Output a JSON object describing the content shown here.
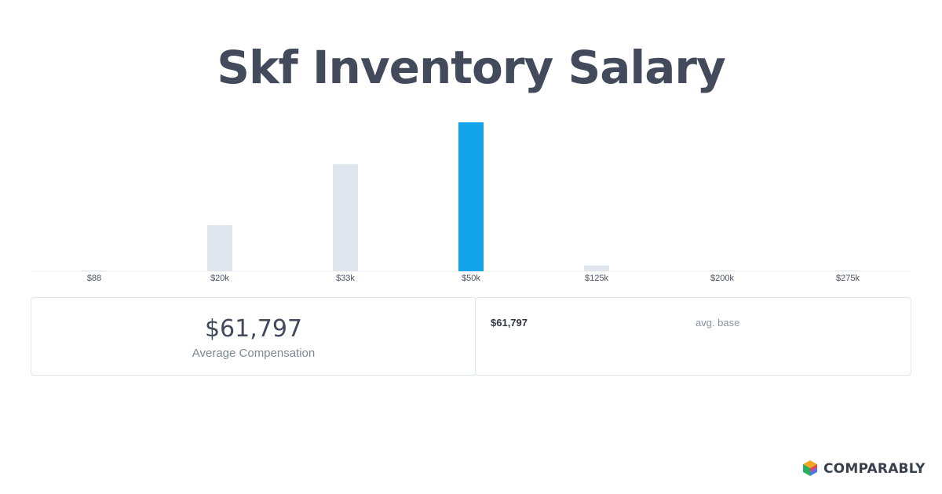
{
  "title": "Skf Inventory Salary",
  "chart_data": {
    "type": "bar",
    "categories": [
      "$88",
      "$20k",
      "$33k",
      "$50k",
      "$125k",
      "$200k",
      "$275k"
    ],
    "values": [
      0.4,
      31,
      72,
      100,
      4,
      0.4,
      0.4
    ],
    "highlight_index": 3,
    "colors": {
      "default": "#e0e6ed",
      "highlight": "#12a4e8"
    },
    "ylim": [
      0,
      100
    ]
  },
  "summary": {
    "average_value": "$61,797",
    "average_label": "Average Compensation",
    "base_value": "$61,797",
    "base_label": "avg. base"
  },
  "brand": {
    "name": "COMPARABLY",
    "logo_icon": "comparably-logo-icon"
  }
}
